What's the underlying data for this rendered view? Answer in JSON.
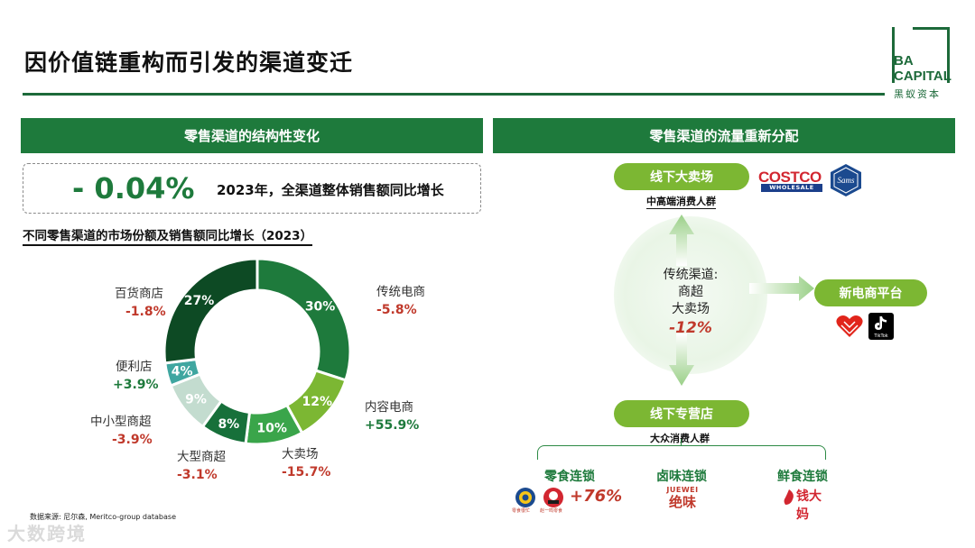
{
  "page": {
    "title": "因价值链重构而引发的渠道变迁",
    "brand": {
      "line1": "BA",
      "line2": "CAPITAL",
      "line3": "黑蚁资本",
      "color": "#1d6a3a"
    }
  },
  "left": {
    "header": "零售渠道的结构性变化",
    "kpi": {
      "value": "- 0.04%",
      "description": "2023年，全渠道整体销售额同比增长"
    },
    "chart_title": "不同零售渠道的市场份额及销售额同比增长（2023）",
    "source": "数据来源: 尼尔森, Meritco-group database"
  },
  "chart_data": {
    "type": "pie",
    "title": "不同零售渠道的市场份额及销售额同比增长（2023）",
    "donut": true,
    "slices": [
      {
        "name": "传统电商",
        "share": 30,
        "share_label": "30%",
        "growth": "-5.8%",
        "color": "#1e7a3c"
      },
      {
        "name": "内容电商",
        "share": 12,
        "share_label": "12%",
        "growth": "+55.9%",
        "color": "#7cb733"
      },
      {
        "name": "大卖场",
        "share": 10,
        "share_label": "10%",
        "growth": "-15.7%",
        "color": "#3aa54a"
      },
      {
        "name": "大型商超",
        "share": 8,
        "share_label": "8%",
        "growth": "-3.1%",
        "color": "#17703a"
      },
      {
        "name": "中小型商超",
        "share": 9,
        "share_label": "9%",
        "growth": "-3.9%",
        "color": "#c3dccf"
      },
      {
        "name": "便利店",
        "share": 4,
        "share_label": "4%",
        "growth": "+3.9%",
        "color": "#3fa6a0"
      },
      {
        "name": "百货商店",
        "share": 27,
        "share_label": "27%",
        "growth": "-1.8%",
        "color": "#0d4a24"
      }
    ]
  },
  "right": {
    "header": "零售渠道的流量重新分配",
    "center": {
      "line1": "传统渠道:",
      "line2": "商超",
      "line3": "大卖场",
      "change": "-12%"
    },
    "top_pill": "线下大卖场",
    "top_caption": "中高端消费人群",
    "right_pill": "新电商平台",
    "bottom_pill": "线下专营店",
    "bottom_caption": "大众消费人群",
    "chains": [
      {
        "name": "零食连锁",
        "growth": "+76%"
      },
      {
        "name": "卤味连锁"
      },
      {
        "name": "鲜食连锁"
      }
    ],
    "logos": {
      "costco": "COSTCO",
      "costco_sub": "WHOLESALE",
      "sams": "Sams",
      "tiktok": "TikTok",
      "juewei_en": "JUEWEI",
      "juewei_cn": "绝味",
      "qdm": "钱大妈",
      "snack1": "零食很忙",
      "snack2": "赵一鸣零食"
    }
  },
  "watermark": "大数跨境"
}
